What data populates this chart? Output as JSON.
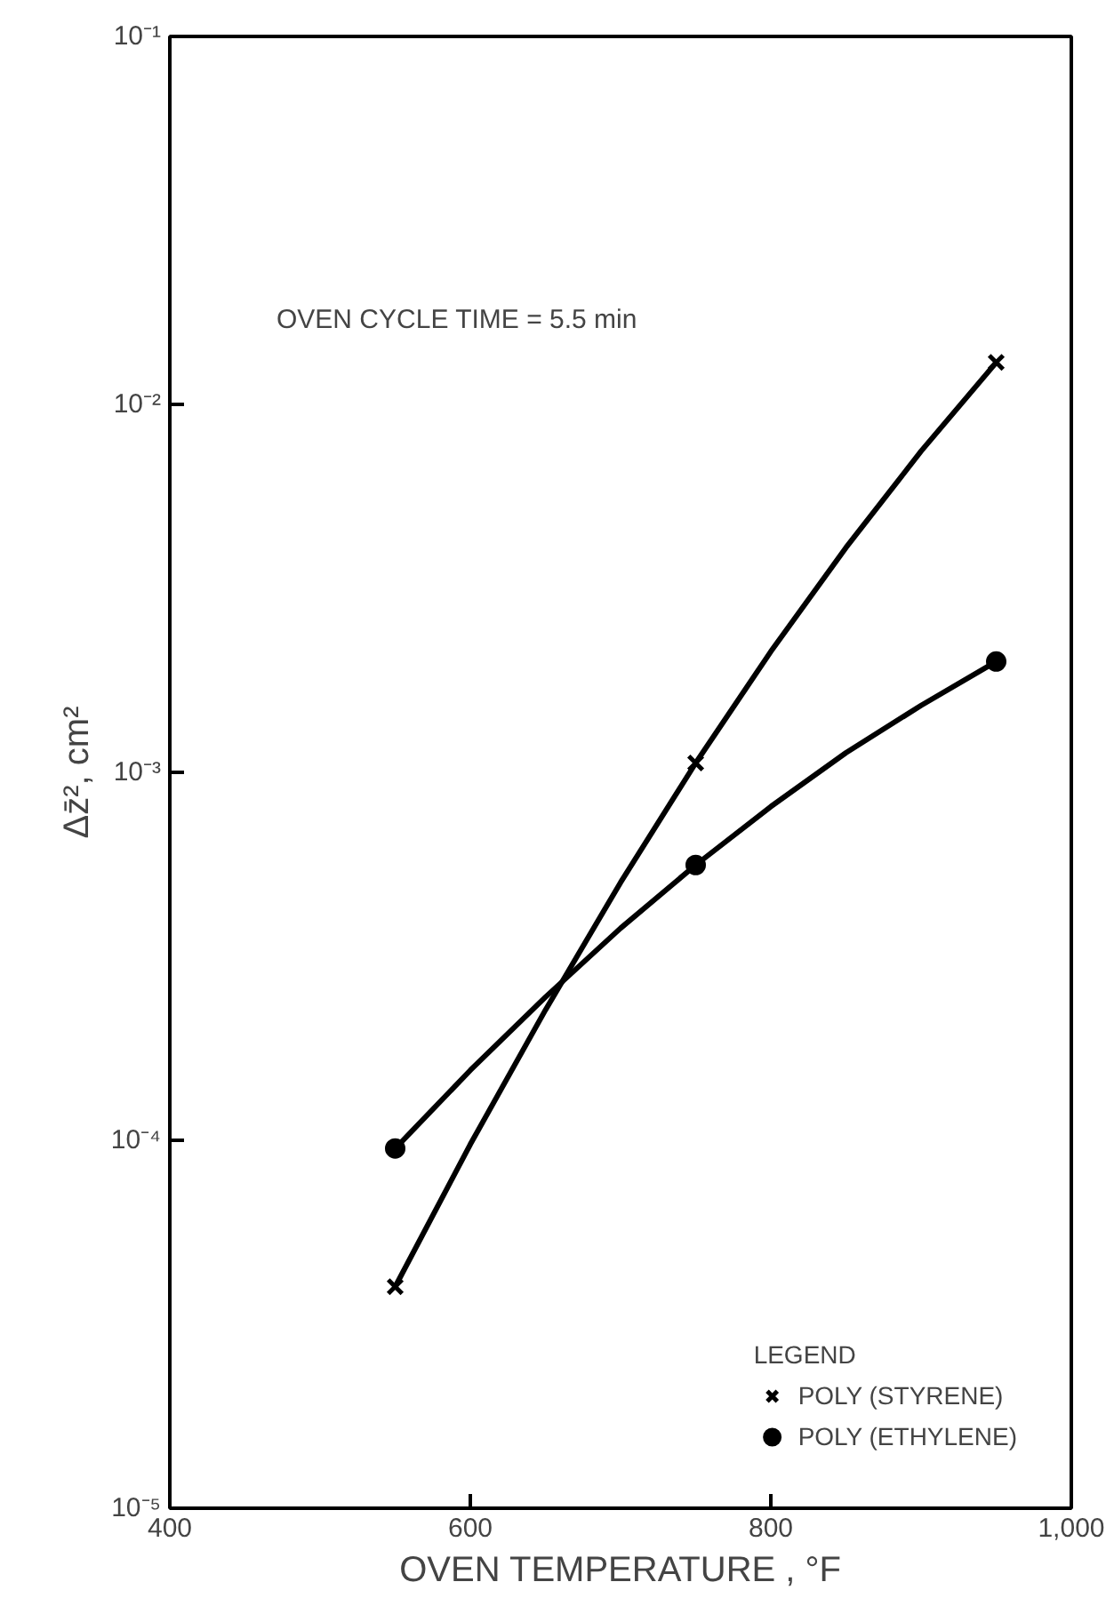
{
  "chart_data": {
    "type": "line",
    "xlabel": "OVEN TEMPERATURE , °F",
    "ylabel": "Δz̄², cm²",
    "legend_title": "LEGEND",
    "annotations": [
      "OVEN CYCLE TIME = 5.5 min"
    ],
    "series": [
      {
        "name": "POLY (STYRENE)",
        "type": "scatter",
        "color": "#000000",
        "marker": "cross",
        "x": [
          550,
          750,
          950
        ],
        "values": [
          4e-05,
          0.00106,
          0.013
        ]
      },
      {
        "name": "POLY (ETHYLENE)",
        "type": "scatter",
        "color": "#000000",
        "marker": "circle",
        "x": [
          550,
          750,
          950
        ],
        "values": [
          9.5e-05,
          0.00056,
          0.002
        ]
      },
      {
        "color": "#000000",
        "marker": "none",
        "x": [
          550,
          600,
          650,
          700,
          750,
          800,
          850,
          900,
          950
        ],
        "values": [
          4e-05,
          9.75e-05,
          0.000226,
          0.000502,
          0.00106,
          0.00213,
          0.00408,
          0.00746,
          0.013
        ]
      },
      {
        "color": "#000000",
        "marker": "none",
        "x": [
          550,
          600,
          650,
          700,
          750,
          800,
          850,
          900,
          950
        ],
        "values": [
          9.5e-05,
          0.000155,
          0.000245,
          0.000377,
          0.00056,
          0.000807,
          0.00113,
          0.00152,
          0.002
        ]
      }
    ],
    "xlim": [
      400,
      1000
    ],
    "xticks": [
      400,
      600,
      800,
      {
        "value": 1000,
        "label": "1,000"
      }
    ],
    "ylim": [
      1e-05,
      0.1
    ],
    "yticks": [
      {
        "value": 1e-05,
        "label": "10⁻⁵"
      },
      {
        "value": 0.0001,
        "label": "10⁻⁴"
      },
      {
        "value": 0.001,
        "label": "10⁻³"
      },
      {
        "value": 0.01,
        "label": "10⁻²"
      },
      {
        "value": 0.1,
        "label": "10⁻¹"
      }
    ],
    "log": "y",
    "grid": false,
    "legend": "bottom right"
  }
}
